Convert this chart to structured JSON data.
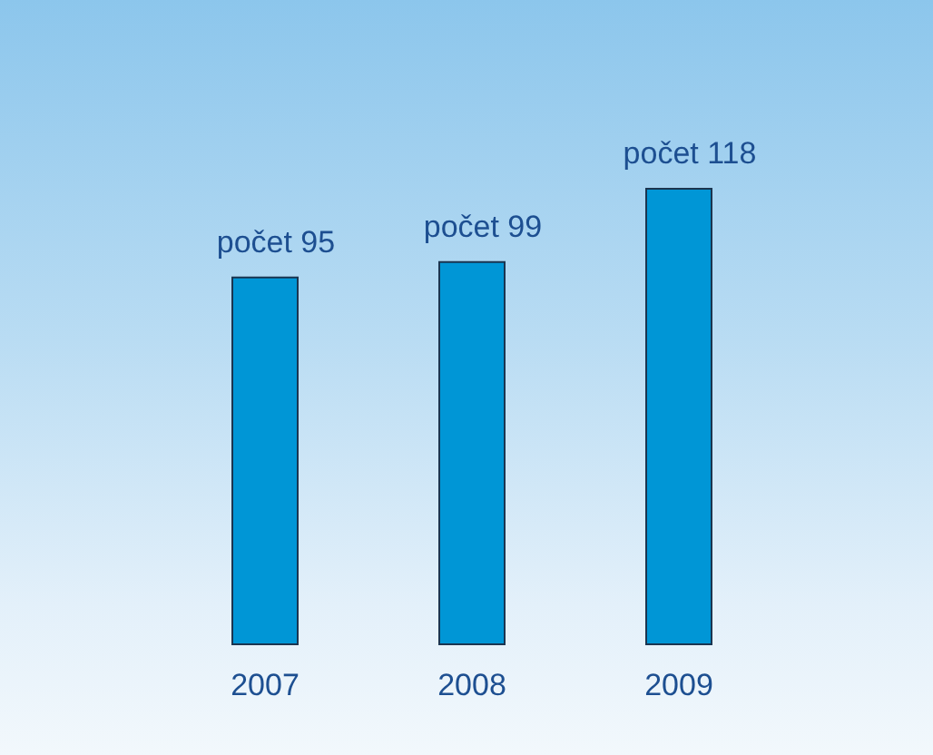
{
  "chart_data": {
    "type": "bar",
    "categories": [
      "2007",
      "2008",
      "2009"
    ],
    "values": [
      95,
      99,
      118
    ],
    "color": "#0096d6",
    "value_labels": [
      "počet 95",
      "počet 99",
      "počet 118"
    ]
  }
}
